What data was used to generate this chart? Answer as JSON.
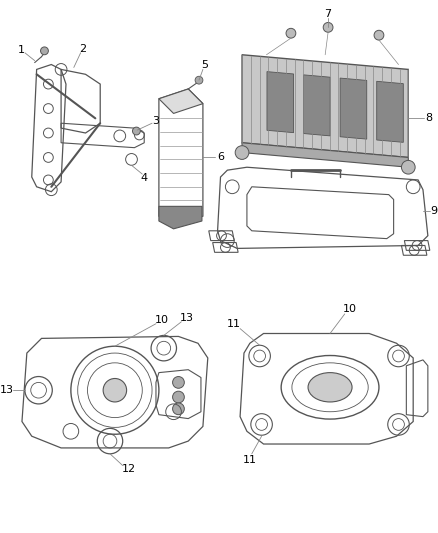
{
  "bg_color": "#ffffff",
  "lc": "#555555",
  "tc": "#000000",
  "fig_width": 4.38,
  "fig_height": 5.33,
  "dpi": 100
}
